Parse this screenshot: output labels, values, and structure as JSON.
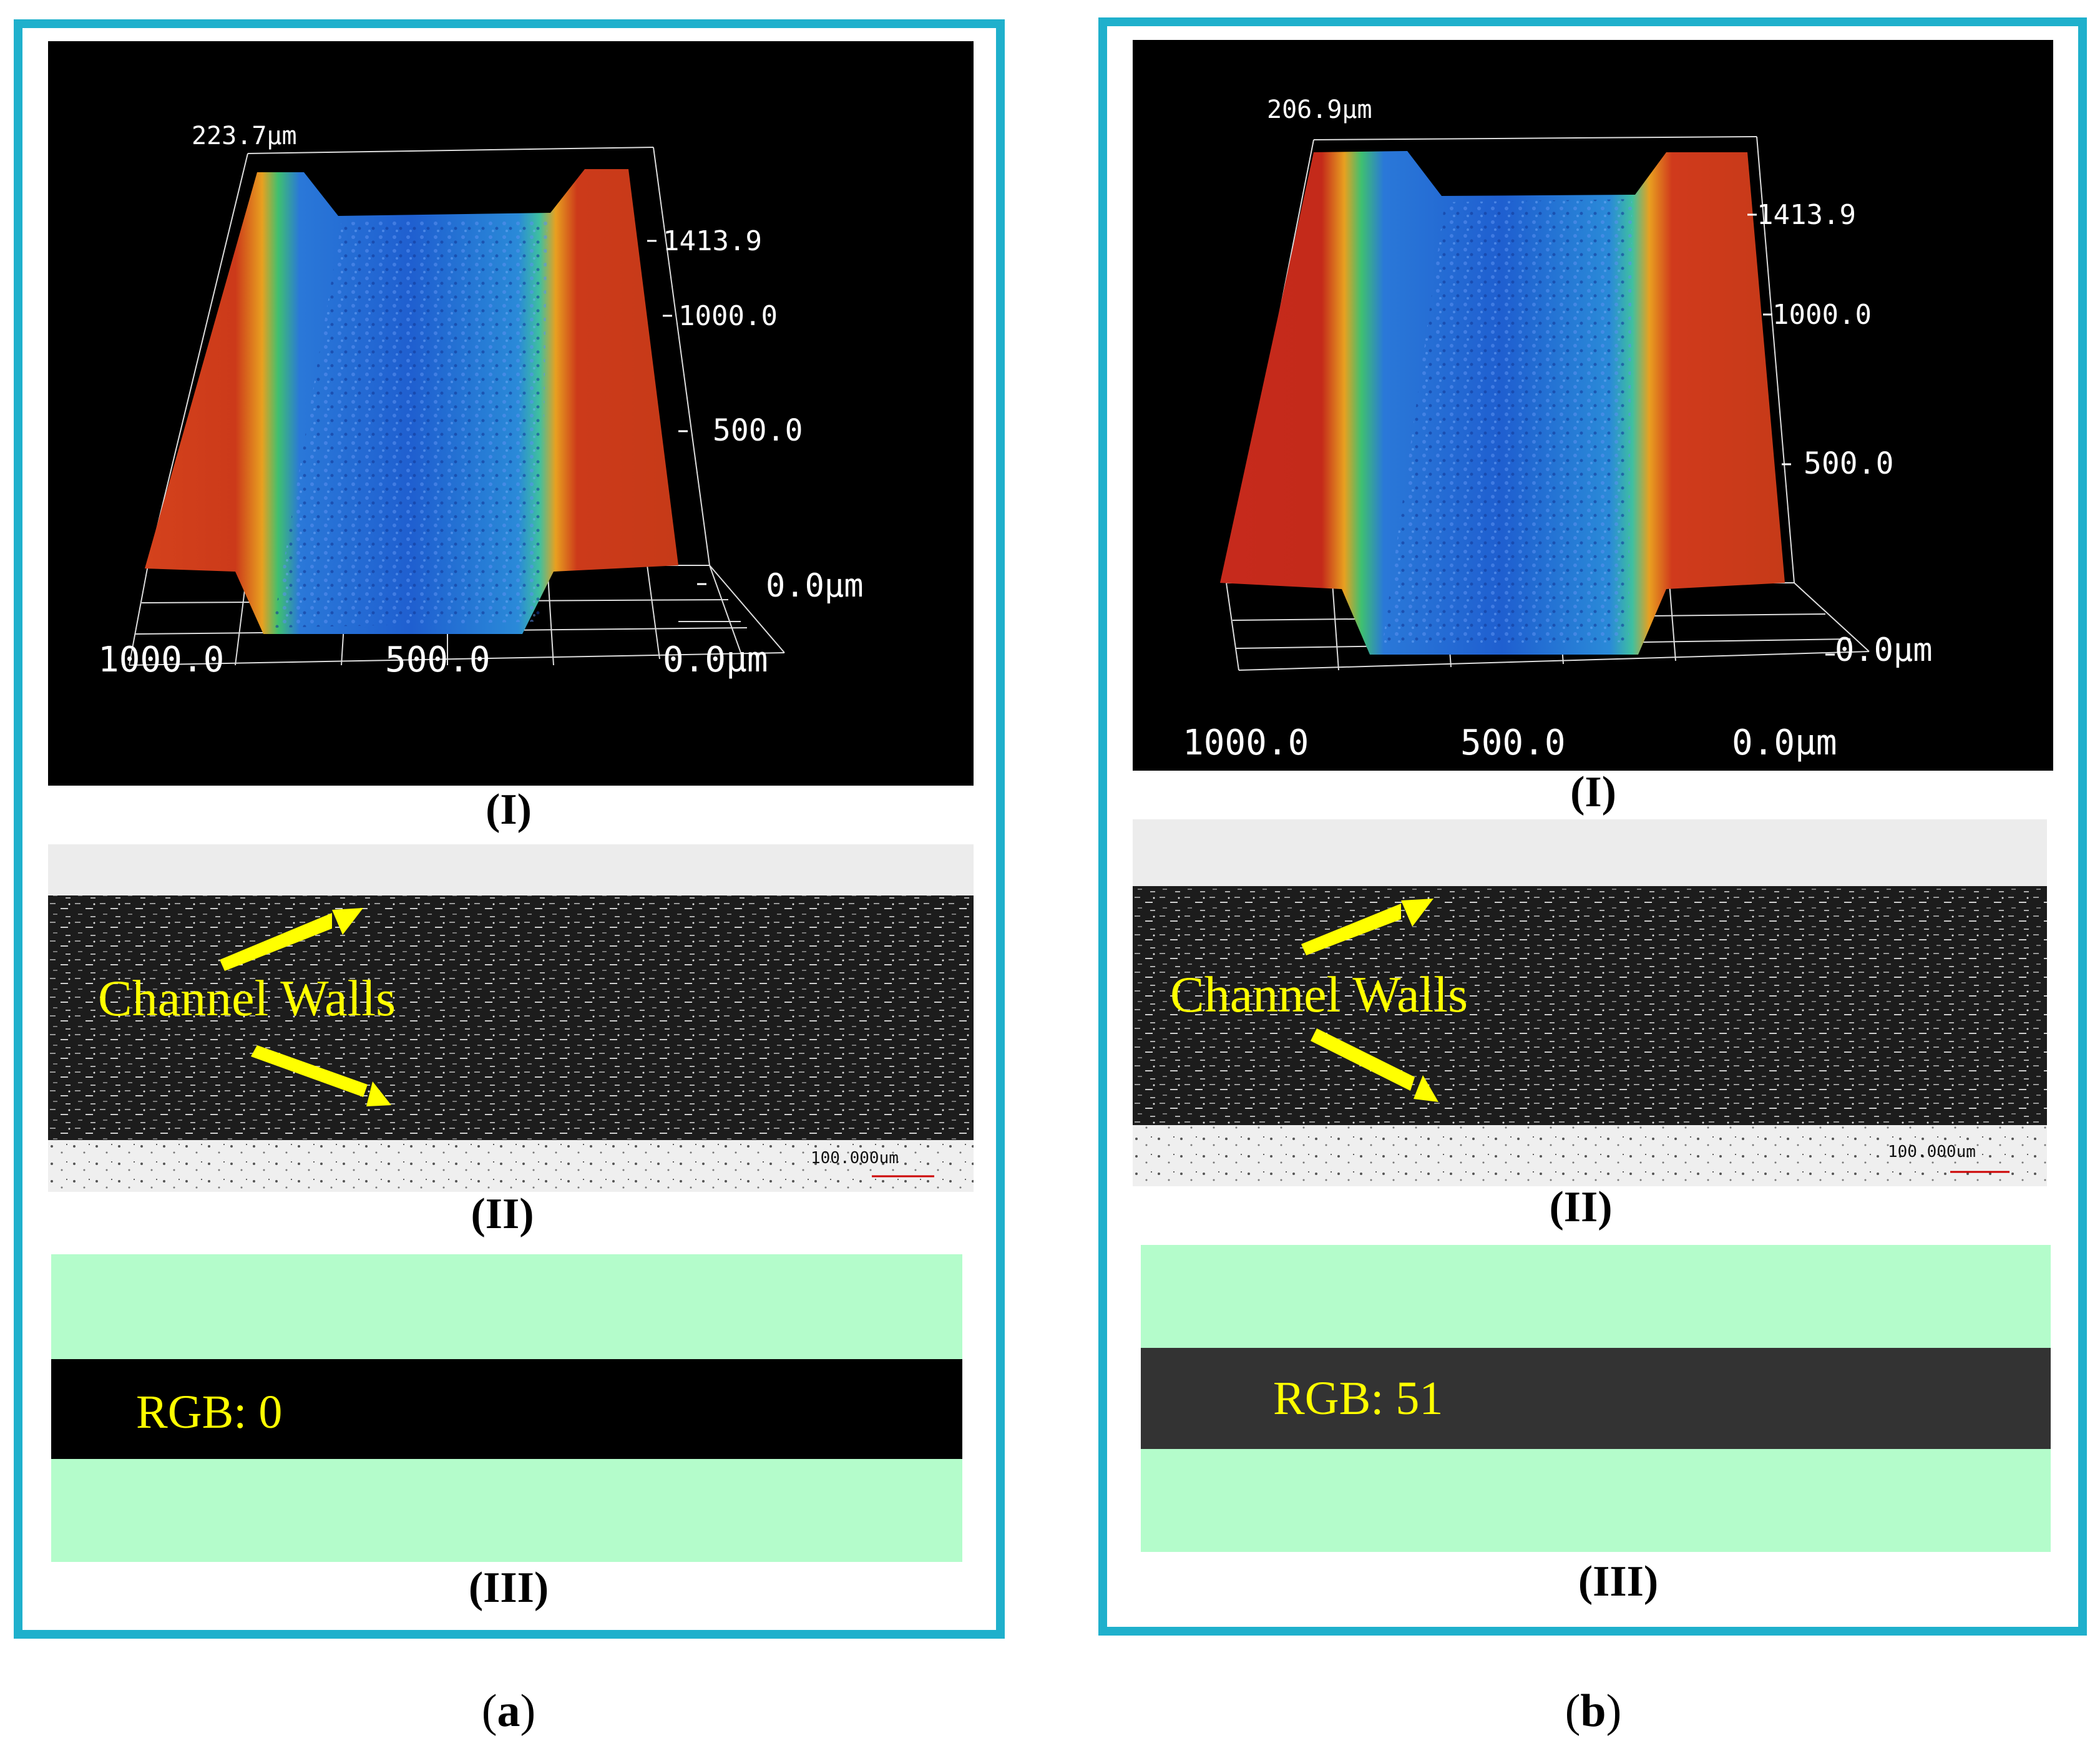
{
  "panels": [
    {
      "id": "a",
      "caption_open": "(",
      "caption_letter": "a",
      "caption_close": ")",
      "profile": {
        "sublabel": "(I)",
        "height_label": "223.7µm",
        "z_ticks": [
          "1413.9",
          "1000.0",
          "500.0",
          "0.0µm"
        ],
        "x_ticks": [
          "1000.0",
          "500.0",
          "0.0µm"
        ]
      },
      "micrograph": {
        "sublabel": "(II)",
        "annotation": "Channel Walls",
        "scale_bar": "100.000um"
      },
      "rgb": {
        "sublabel": "(III)",
        "label": "RGB: 0",
        "band_color": "#000000",
        "background_color": "#b4fccb"
      }
    },
    {
      "id": "b",
      "caption_open": "(",
      "caption_letter": "b",
      "caption_close": ")",
      "profile": {
        "sublabel": "(I)",
        "height_label": "206.9µm",
        "z_ticks": [
          "1413.9",
          "1000.0",
          "500.0",
          "0.0µm"
        ],
        "x_ticks": [
          "1000.0",
          "500.0",
          "0.0µm"
        ]
      },
      "micrograph": {
        "sublabel": "(II)",
        "annotation": "Channel Walls",
        "scale_bar": "100.000um"
      },
      "rgb": {
        "sublabel": "(III)",
        "label": "RGB: 51",
        "band_color": "#333333",
        "background_color": "#b4fccb"
      }
    }
  ],
  "colors": {
    "frame": "#1fb0cc",
    "surface_wall": "#cc3a1a",
    "surface_channel": "#1f5fd0",
    "annotation": "#ffff00"
  }
}
